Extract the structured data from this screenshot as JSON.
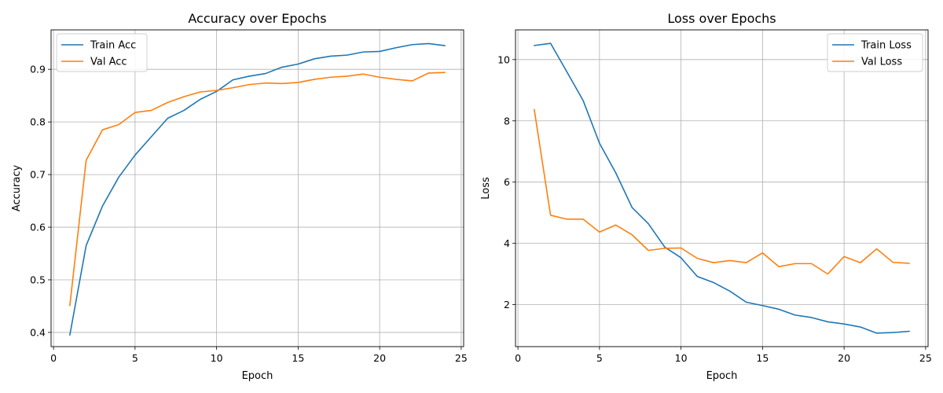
{
  "chart_data": [
    {
      "type": "line",
      "title": "Accuracy over Epochs",
      "xlabel": "Epoch",
      "ylabel": "Accuracy",
      "xlim": [
        -0.15,
        25.15
      ],
      "ylim": [
        0.373,
        0.975
      ],
      "xticks": [
        0,
        5,
        10,
        15,
        20,
        25
      ],
      "yticks": [
        0.4,
        0.5,
        0.6,
        0.7,
        0.8,
        0.9
      ],
      "ytick_labels": [
        "0.4",
        "0.5",
        "0.6",
        "0.7",
        "0.8",
        "0.9"
      ],
      "grid": true,
      "legend_position": "top-left",
      "x": [
        1,
        2,
        3,
        4,
        5,
        6,
        7,
        8,
        9,
        10,
        11,
        12,
        13,
        14,
        15,
        16,
        17,
        18,
        19,
        20,
        21,
        22,
        23,
        24
      ],
      "series": [
        {
          "name": "Train Acc",
          "color": "#1f77b4",
          "values": [
            0.395,
            0.565,
            0.64,
            0.695,
            0.737,
            0.772,
            0.807,
            0.822,
            0.843,
            0.858,
            0.88,
            0.887,
            0.892,
            0.904,
            0.91,
            0.92,
            0.925,
            0.927,
            0.933,
            0.934,
            0.941,
            0.947,
            0.949,
            0.945
          ]
        },
        {
          "name": "Val Acc",
          "color": "#ff7f0e",
          "values": [
            0.451,
            0.727,
            0.785,
            0.795,
            0.818,
            0.822,
            0.837,
            0.848,
            0.857,
            0.86,
            0.865,
            0.871,
            0.874,
            0.873,
            0.875,
            0.881,
            0.885,
            0.887,
            0.891,
            0.885,
            0.881,
            0.878,
            0.893,
            0.894
          ]
        }
      ]
    },
    {
      "type": "line",
      "title": "Loss over Epochs",
      "xlabel": "Epoch",
      "ylabel": "Loss",
      "xlim": [
        -0.15,
        25.15
      ],
      "ylim": [
        0.63,
        10.97
      ],
      "xticks": [
        0,
        5,
        10,
        15,
        20,
        25
      ],
      "yticks": [
        2,
        4,
        6,
        8,
        10
      ],
      "ytick_labels": [
        "2",
        "4",
        "6",
        "8",
        "10"
      ],
      "grid": true,
      "legend_position": "top-right",
      "x": [
        1,
        2,
        3,
        4,
        5,
        6,
        7,
        8,
        9,
        10,
        11,
        12,
        13,
        14,
        15,
        16,
        17,
        18,
        19,
        20,
        21,
        22,
        23,
        24
      ],
      "series": [
        {
          "name": "Train Loss",
          "color": "#1f77b4",
          "values": [
            10.46,
            10.53,
            9.6,
            8.66,
            7.27,
            6.3,
            5.17,
            4.64,
            3.88,
            3.53,
            2.92,
            2.72,
            2.44,
            2.08,
            1.97,
            1.85,
            1.66,
            1.58,
            1.44,
            1.37,
            1.27,
            1.07,
            1.09,
            1.13
          ]
        },
        {
          "name": "Val Loss",
          "color": "#ff7f0e",
          "values": [
            8.37,
            4.92,
            4.79,
            4.79,
            4.37,
            4.6,
            4.28,
            3.77,
            3.84,
            3.85,
            3.51,
            3.37,
            3.44,
            3.37,
            3.69,
            3.24,
            3.34,
            3.34,
            3.0,
            3.57,
            3.37,
            3.82,
            3.38,
            3.35
          ]
        }
      ]
    }
  ]
}
